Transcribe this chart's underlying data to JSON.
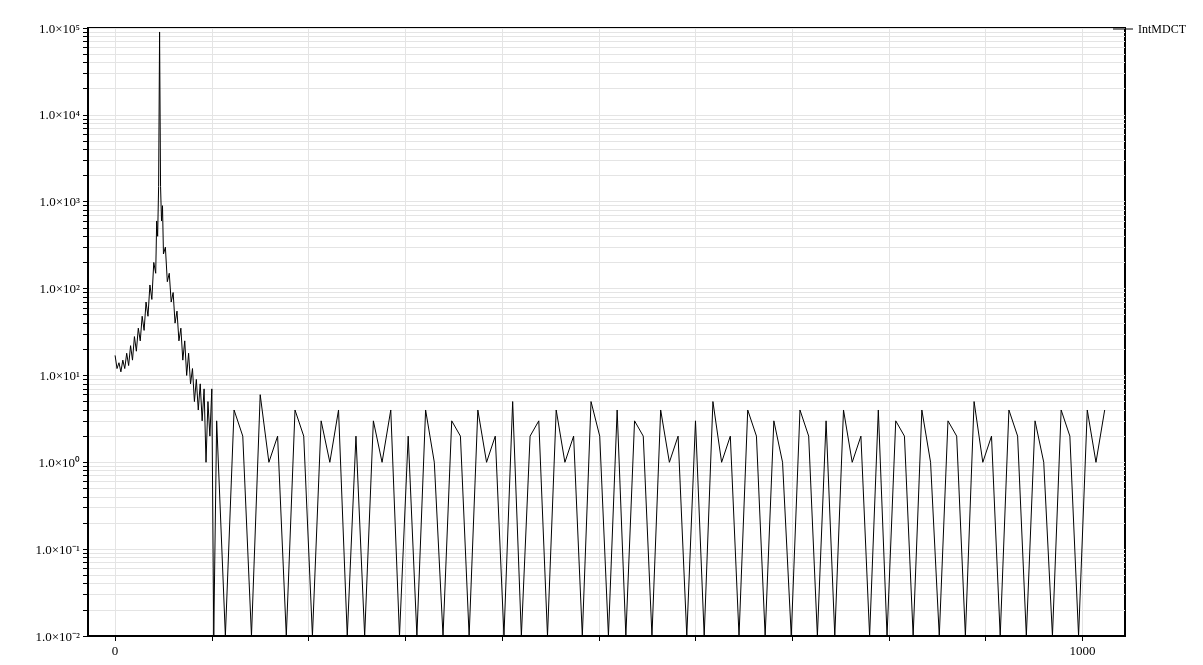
{
  "chart_data": {
    "type": "line",
    "xlim": [
      -28,
      1044
    ],
    "ylim": [
      0.01,
      100000
    ],
    "log": "y",
    "grid": true,
    "legend": "top right",
    "marker": "none",
    "line_style": "solid",
    "xticks": [
      0,
      {
        "value": 100,
        "label": null
      },
      {
        "value": 200,
        "label": null
      },
      {
        "value": 300,
        "label": null
      },
      {
        "value": 400,
        "label": null
      },
      {
        "value": 500,
        "label": null
      },
      {
        "value": 600,
        "label": null
      },
      {
        "value": 700,
        "label": null
      },
      {
        "value": 800,
        "label": null
      },
      {
        "value": 900,
        "label": null
      },
      1000
    ],
    "yticks": [
      {
        "value": 0.01,
        "label": "1.0×10⁻²"
      },
      {
        "value": 0.02,
        "label": null
      },
      {
        "value": 0.03,
        "label": null
      },
      {
        "value": 0.04,
        "label": null
      },
      {
        "value": 0.05,
        "label": null
      },
      {
        "value": 0.06,
        "label": null
      },
      {
        "value": 0.07,
        "label": null
      },
      {
        "value": 0.08,
        "label": null
      },
      {
        "value": 0.09,
        "label": null
      },
      {
        "value": 0.1,
        "label": "1.0×10⁻¹"
      },
      {
        "value": 0.2,
        "label": null
      },
      {
        "value": 0.3,
        "label": null
      },
      {
        "value": 0.4,
        "label": null
      },
      {
        "value": 0.5,
        "label": null
      },
      {
        "value": 0.6,
        "label": null
      },
      {
        "value": 0.7,
        "label": null
      },
      {
        "value": 0.8,
        "label": null
      },
      {
        "value": 0.9,
        "label": null
      },
      {
        "value": 1,
        "label": "1.0×10⁰"
      },
      {
        "value": 2,
        "label": null
      },
      {
        "value": 3,
        "label": null
      },
      {
        "value": 4,
        "label": null
      },
      {
        "value": 5,
        "label": null
      },
      {
        "value": 6,
        "label": null
      },
      {
        "value": 7,
        "label": null
      },
      {
        "value": 8,
        "label": null
      },
      {
        "value": 9,
        "label": null
      },
      {
        "value": 10,
        "label": "1.0×10¹"
      },
      {
        "value": 20,
        "label": null
      },
      {
        "value": 30,
        "label": null
      },
      {
        "value": 40,
        "label": null
      },
      {
        "value": 50,
        "label": null
      },
      {
        "value": 60,
        "label": null
      },
      {
        "value": 70,
        "label": null
      },
      {
        "value": 80,
        "label": null
      },
      {
        "value": 90,
        "label": null
      },
      {
        "value": 100,
        "label": "1.0×10²"
      },
      {
        "value": 200,
        "label": null
      },
      {
        "value": 300,
        "label": null
      },
      {
        "value": 400,
        "label": null
      },
      {
        "value": 500,
        "label": null
      },
      {
        "value": 600,
        "label": null
      },
      {
        "value": 700,
        "label": null
      },
      {
        "value": 800,
        "label": null
      },
      {
        "value": 900,
        "label": null
      },
      {
        "value": 1000,
        "label": "1.0×10³"
      },
      {
        "value": 2000,
        "label": null
      },
      {
        "value": 3000,
        "label": null
      },
      {
        "value": 4000,
        "label": null
      },
      {
        "value": 5000,
        "label": null
      },
      {
        "value": 6000,
        "label": null
      },
      {
        "value": 7000,
        "label": null
      },
      {
        "value": 8000,
        "label": null
      },
      {
        "value": 9000,
        "label": null
      },
      {
        "value": 10000,
        "label": "1.0×10⁴"
      },
      {
        "value": 20000,
        "label": null
      },
      {
        "value": 30000,
        "label": null
      },
      {
        "value": 40000,
        "label": null
      },
      {
        "value": 50000,
        "label": null
      },
      {
        "value": 60000,
        "label": null
      },
      {
        "value": 70000,
        "label": null
      },
      {
        "value": 80000,
        "label": null
      },
      {
        "value": 90000,
        "label": null
      },
      {
        "value": 100000,
        "label": "1.0×10⁵"
      }
    ],
    "series": [
      {
        "name": "IntMDCT",
        "color": "#000000",
        "x": [
          0,
          2,
          4,
          6,
          8,
          10,
          12,
          14,
          16,
          18,
          20,
          22,
          24,
          26,
          28,
          30,
          32,
          34,
          36,
          38,
          40,
          42,
          43,
          44,
          45,
          46,
          47,
          48,
          49,
          50,
          52,
          54,
          56,
          58,
          60,
          62,
          64,
          66,
          68,
          70,
          72,
          74,
          76,
          78,
          80,
          82,
          84,
          86,
          88,
          90,
          92,
          94,
          96,
          98,
          100,
          102,
          105,
          114,
          123,
          132,
          141,
          150,
          159,
          168,
          177,
          186,
          195,
          204,
          213,
          222,
          231,
          240,
          249,
          258,
          267,
          276,
          285,
          294,
          303,
          312,
          321,
          330,
          339,
          348,
          357,
          366,
          375,
          384,
          393,
          402,
          411,
          420,
          429,
          438,
          447,
          456,
          465,
          474,
          483,
          492,
          501,
          510,
          519,
          528,
          537,
          546,
          555,
          564,
          573,
          582,
          591,
          600,
          609,
          618,
          627,
          636,
          645,
          654,
          663,
          672,
          681,
          690,
          699,
          708,
          717,
          726,
          735,
          744,
          753,
          762,
          771,
          780,
          789,
          798,
          807,
          816,
          825,
          834,
          843,
          852,
          861,
          870,
          879,
          888,
          897,
          906,
          915,
          924,
          933,
          942,
          951,
          960,
          969,
          978,
          987,
          996,
          1005,
          1014,
          1023
        ],
        "values": [
          17,
          12,
          14,
          11,
          15,
          12,
          18,
          13,
          22,
          15,
          28,
          19,
          35,
          25,
          48,
          33,
          70,
          48,
          110,
          75,
          200,
          150,
          600,
          400,
          1500,
          90000,
          1500,
          600,
          900,
          250,
          300,
          120,
          150,
          70,
          90,
          40,
          55,
          25,
          35,
          15,
          25,
          10,
          18,
          8,
          12,
          5,
          9,
          4,
          8,
          3,
          7,
          1,
          5,
          2,
          7,
          0.01,
          3,
          0.01,
          4,
          2,
          0.01,
          6,
          1,
          2,
          0.01,
          4,
          2,
          0.01,
          3,
          1,
          4,
          0.01,
          2,
          0.01,
          3,
          1,
          4,
          0.01,
          2,
          0.01,
          4,
          1,
          0.01,
          3,
          2,
          0.01,
          4,
          1,
          2,
          0.01,
          5,
          0.01,
          2,
          3,
          0.01,
          4,
          1,
          2,
          0.01,
          5,
          2,
          0.01,
          4,
          0.01,
          3,
          2,
          0.01,
          4,
          1,
          2,
          0.01,
          3,
          0.01,
          5,
          1,
          2,
          0.01,
          4,
          2,
          0.01,
          3,
          1,
          0.01,
          4,
          2,
          0.01,
          3,
          0.01,
          4,
          1,
          2,
          0.01,
          4,
          0.01,
          3,
          2,
          0.01,
          4,
          1,
          0.01,
          3,
          2,
          0.01,
          5,
          1,
          2,
          0.01,
          4,
          2,
          0.01,
          3,
          1,
          0.01,
          4,
          2,
          0.01,
          4,
          1,
          4
        ]
      }
    ]
  }
}
